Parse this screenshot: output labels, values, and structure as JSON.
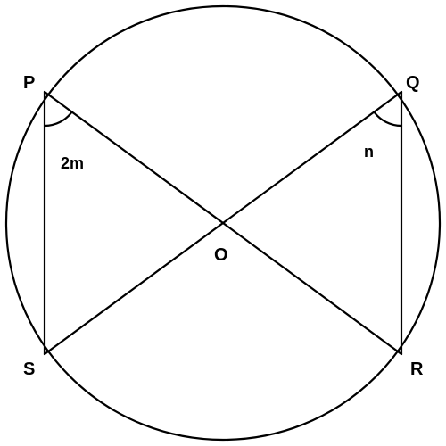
{
  "diagram": {
    "points": {
      "P": "P",
      "Q": "Q",
      "R": "R",
      "S": "S",
      "O": "O"
    },
    "angles": {
      "at_P": "2m",
      "at_Q": "n"
    },
    "colors": {
      "stroke": "#000000",
      "background": "#ffffff"
    }
  }
}
